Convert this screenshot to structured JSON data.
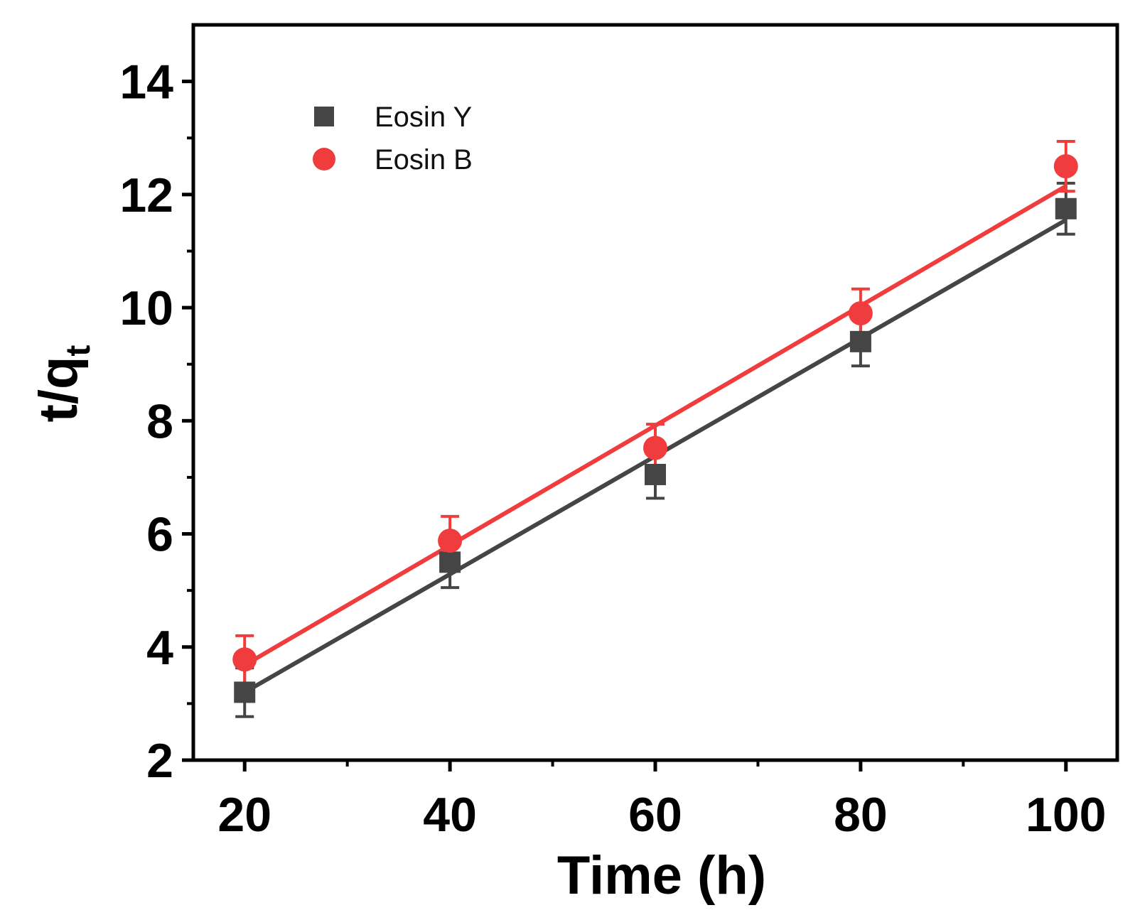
{
  "chart_data": {
    "type": "scatter",
    "title": "",
    "xlabel": "Time (h)",
    "ylabel_main": "t/q",
    "ylabel_sub": "t",
    "xlim": [
      15,
      105
    ],
    "ylim": [
      2,
      15
    ],
    "x_ticks": [
      20,
      40,
      60,
      80,
      100
    ],
    "x_tick_labels": [
      "20",
      "40",
      "60",
      "80",
      "100"
    ],
    "x_minor_ticks": [
      30,
      50,
      70,
      90
    ],
    "y_ticks": [
      2,
      4,
      6,
      8,
      10,
      12,
      14
    ],
    "y_tick_labels": [
      "2",
      "4",
      "6",
      "8",
      "10",
      "12",
      "14"
    ],
    "y_minor_ticks": [
      3,
      5,
      7,
      9,
      11,
      13
    ],
    "legend_position": "top-left",
    "series": [
      {
        "name": "Eosin Y",
        "marker": "square",
        "color": "#454545",
        "x": [
          20,
          40,
          60,
          80,
          100
        ],
        "y": [
          3.2,
          5.5,
          7.05,
          9.4,
          11.75
        ],
        "err": [
          0.43,
          0.45,
          0.42,
          0.43,
          0.45
        ],
        "fit": [
          [
            20,
            3.2
          ],
          [
            100,
            11.55
          ]
        ]
      },
      {
        "name": "Eosin B",
        "marker": "circle",
        "color": "#f03c3c",
        "x": [
          20,
          40,
          60,
          80,
          100
        ],
        "y": [
          3.78,
          5.88,
          7.52,
          9.9,
          12.5
        ],
        "err": [
          0.42,
          0.43,
          0.42,
          0.43,
          0.44
        ],
        "fit": [
          [
            20,
            3.68
          ],
          [
            100,
            12.15
          ]
        ]
      }
    ]
  }
}
